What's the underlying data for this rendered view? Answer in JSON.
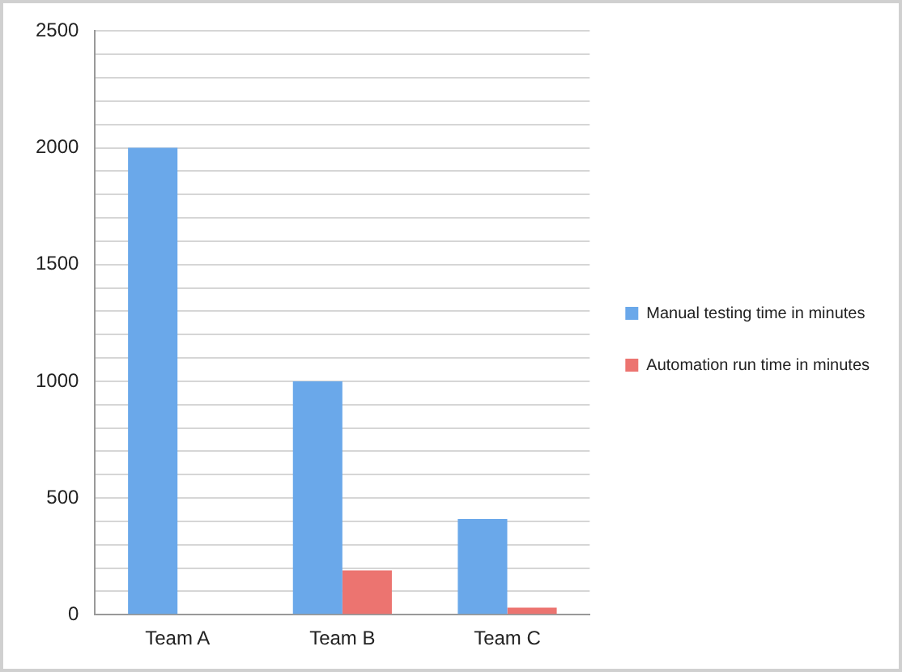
{
  "chart_data": {
    "type": "bar",
    "categories": [
      "Team A",
      "Team B",
      "Team C"
    ],
    "series": [
      {
        "name": "Manual testing time in minutes",
        "color": "#6aa8ea",
        "values": [
          2000,
          1000,
          410
        ]
      },
      {
        "name": "Automation run time in minutes",
        "color": "#ec7470",
        "values": [
          0,
          190,
          30
        ]
      }
    ],
    "ylim": [
      0,
      2500
    ],
    "yticks": [
      0,
      {
        "value": 100,
        "label": null
      },
      {
        "value": 200,
        "label": null
      },
      {
        "value": 300,
        "label": null
      },
      {
        "value": 400,
        "label": null
      },
      500,
      {
        "value": 600,
        "label": null
      },
      {
        "value": 700,
        "label": null
      },
      {
        "value": 800,
        "label": null
      },
      {
        "value": 900,
        "label": null
      },
      1000,
      {
        "value": 1100,
        "label": null
      },
      {
        "value": 1200,
        "label": null
      },
      {
        "value": 1300,
        "label": null
      },
      {
        "value": 1400,
        "label": null
      },
      1500,
      {
        "value": 1600,
        "label": null
      },
      {
        "value": 1700,
        "label": null
      },
      {
        "value": 1800,
        "label": null
      },
      {
        "value": 1900,
        "label": null
      },
      2000,
      {
        "value": 2100,
        "label": null
      },
      {
        "value": 2200,
        "label": null
      },
      {
        "value": 2300,
        "label": null
      },
      {
        "value": 2400,
        "label": null
      },
      2500
    ],
    "grid": "y",
    "legend": "right"
  }
}
